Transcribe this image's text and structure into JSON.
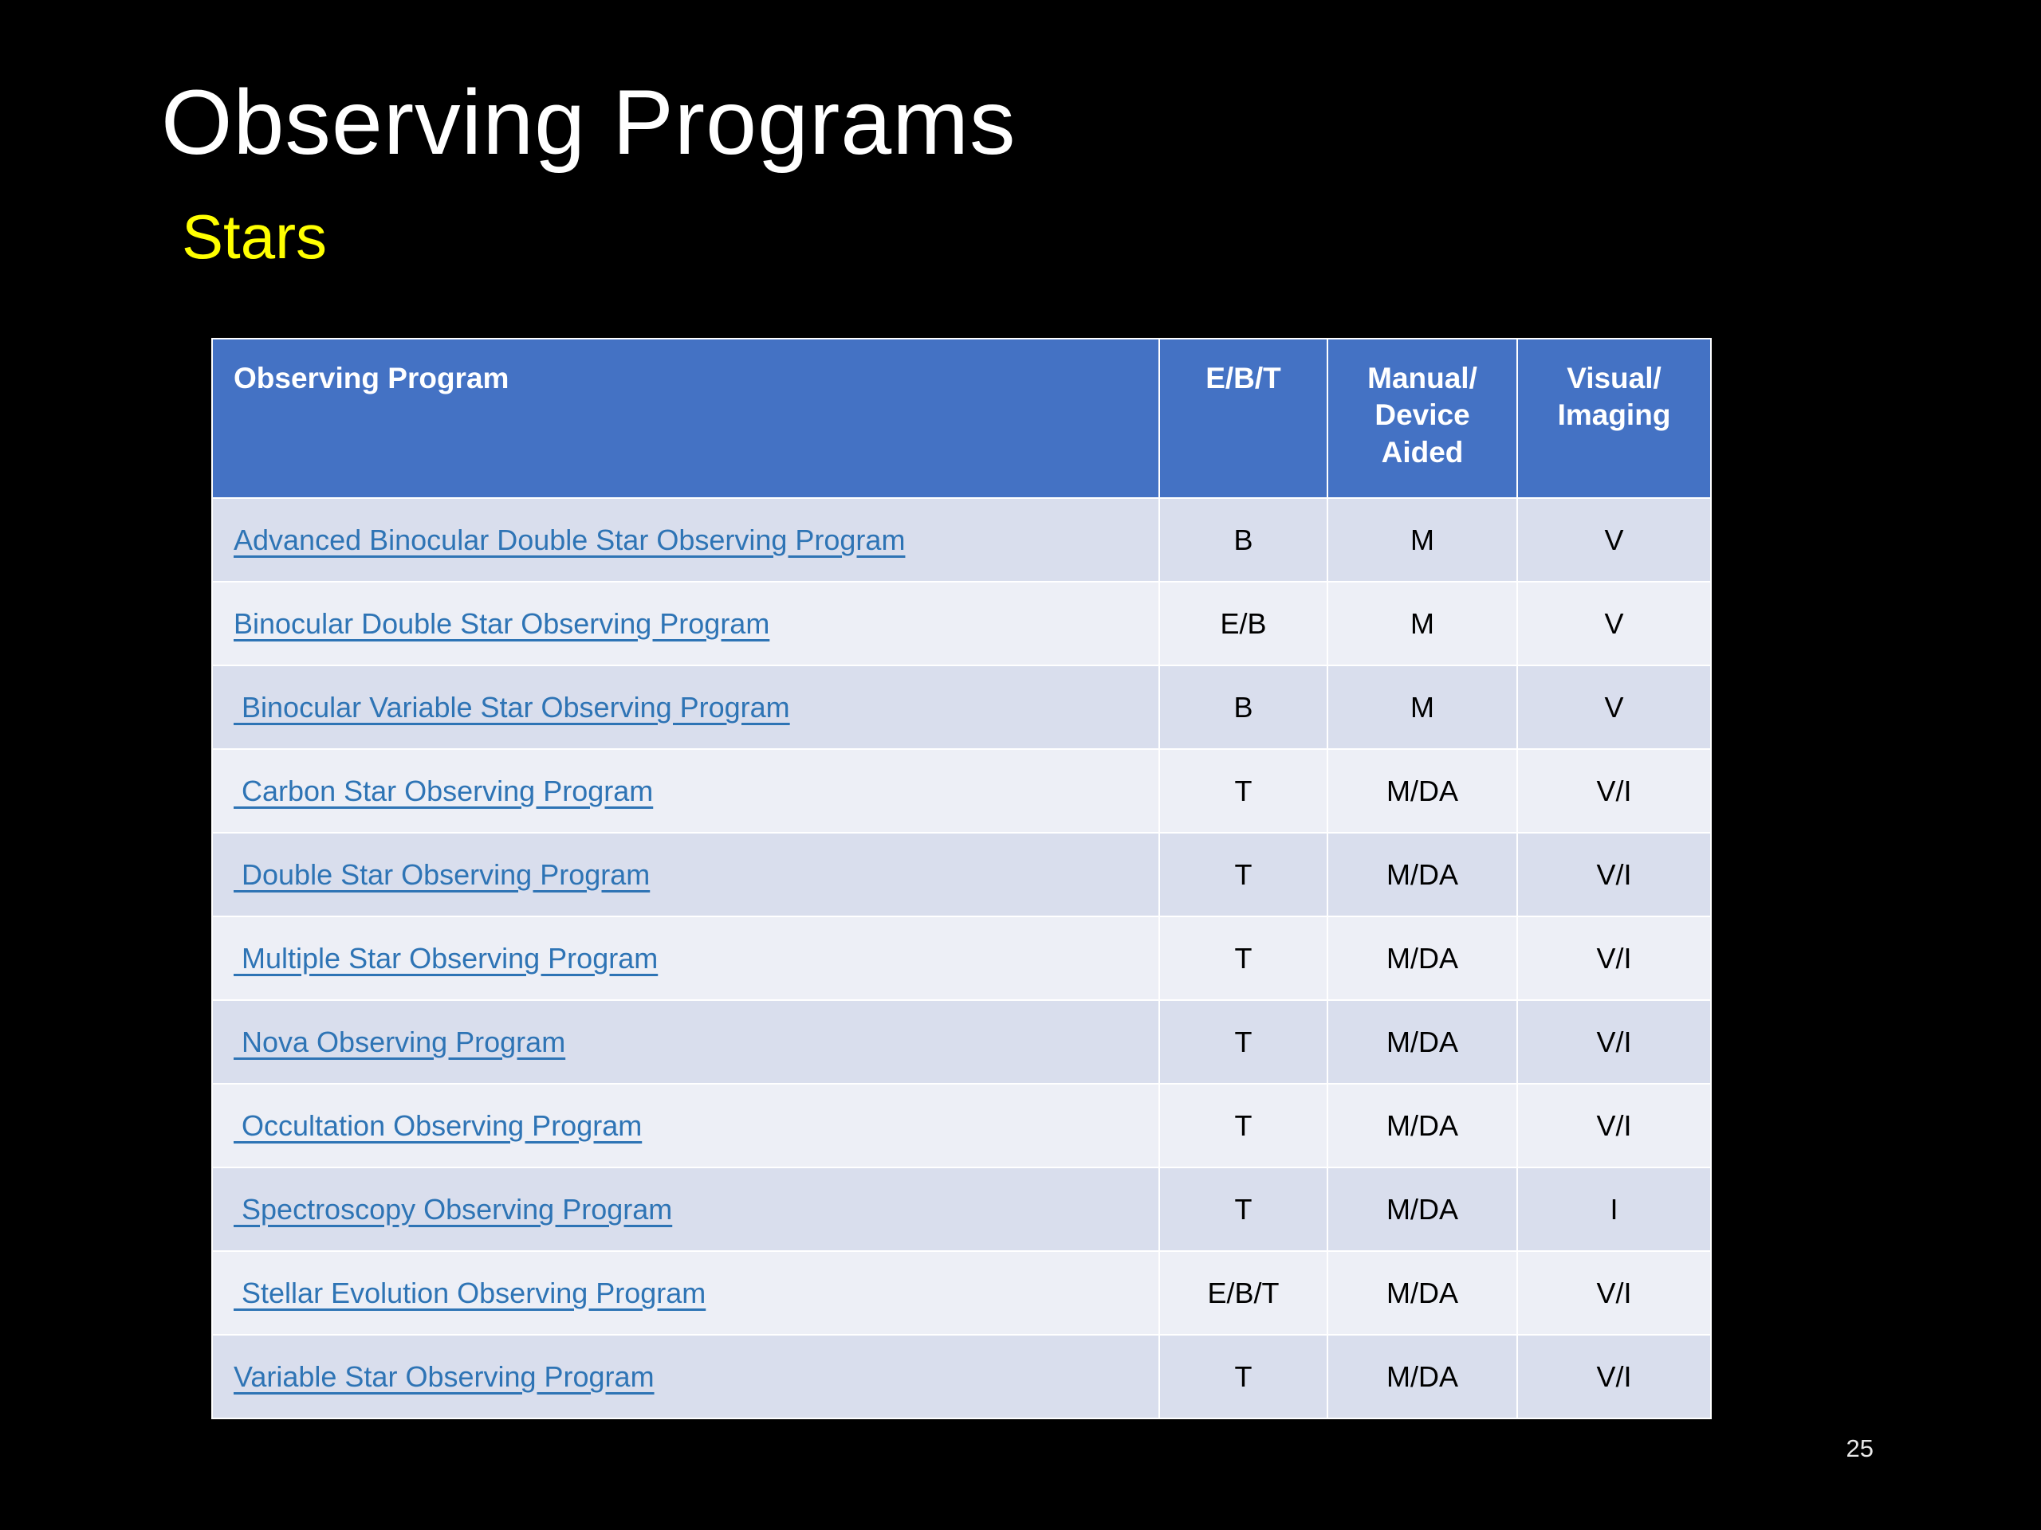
{
  "slide": {
    "title": "Observing Programs",
    "subtitle": "Stars",
    "page_number": "25"
  },
  "colors": {
    "background": "#000000",
    "title_text": "#FFFFFF",
    "subtitle_text": "#FFFF00",
    "table_header_bg": "#4472C4",
    "table_header_text": "#FFFFFF",
    "row_band_a": "#D9DEED",
    "row_band_b": "#EDEFF6",
    "hyperlink": "#2E74B5"
  },
  "table": {
    "columns": [
      "Observing Program",
      "E/B/T",
      "Manual/\nDevice\nAided",
      "Visual/\nImaging"
    ],
    "rows": [
      {
        "program": "Advanced Binocular Double Star Observing Program",
        "ebt": "B",
        "manual_device": "M",
        "visual_imaging": "V"
      },
      {
        "program": "Binocular Double Star Observing Program",
        "ebt": "E/B",
        "manual_device": "M",
        "visual_imaging": "V"
      },
      {
        "program": " Binocular Variable Star Observing Program",
        "ebt": "B",
        "manual_device": "M",
        "visual_imaging": "V"
      },
      {
        "program": " Carbon Star Observing Program",
        "ebt": "T",
        "manual_device": "M/DA",
        "visual_imaging": "V/I"
      },
      {
        "program": " Double Star Observing Program",
        "ebt": "T",
        "manual_device": "M/DA",
        "visual_imaging": "V/I"
      },
      {
        "program": " Multiple Star Observing Program",
        "ebt": "T",
        "manual_device": "M/DA",
        "visual_imaging": "V/I"
      },
      {
        "program": " Nova Observing Program",
        "ebt": "T",
        "manual_device": "M/DA",
        "visual_imaging": "V/I"
      },
      {
        "program": " Occultation Observing Program",
        "ebt": "T",
        "manual_device": "M/DA",
        "visual_imaging": "V/I"
      },
      {
        "program": " Spectroscopy Observing Program",
        "ebt": "T",
        "manual_device": "M/DA",
        "visual_imaging": "I"
      },
      {
        "program": " Stellar Evolution Observing Program",
        "ebt": "E/B/T",
        "manual_device": "M/DA",
        "visual_imaging": "V/I"
      },
      {
        "program": "Variable Star Observing Program",
        "ebt": "T",
        "manual_device": "M/DA",
        "visual_imaging": "V/I"
      }
    ]
  }
}
